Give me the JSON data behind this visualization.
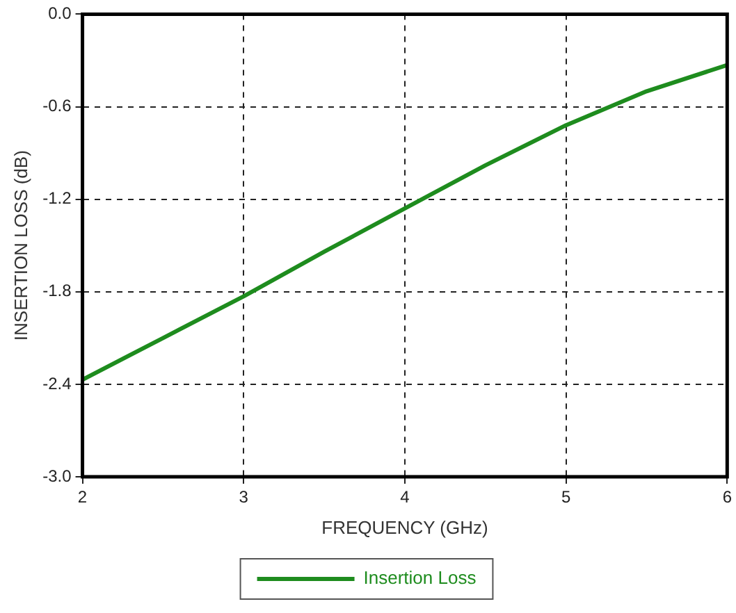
{
  "chart_data": {
    "type": "line",
    "xlabel": "FREQUENCY (GHz)",
    "ylabel": "INSERTION LOSS (dB)",
    "x": [
      2,
      2.5,
      3,
      3.5,
      4,
      4.5,
      5,
      5.5,
      6
    ],
    "series": [
      {
        "name": "Insertion Loss",
        "color": "#1e8c1e",
        "values": [
          -2.37,
          -2.1,
          -1.83,
          -1.54,
          -1.26,
          -0.98,
          -0.72,
          -0.5,
          -0.33
        ]
      }
    ],
    "xlim": [
      2,
      6
    ],
    "xticks": [
      2,
      3,
      4,
      5,
      6
    ],
    "ylim": [
      -3,
      0
    ],
    "yticks": [
      {
        "value": -3,
        "label": "-3.0"
      },
      -2.4,
      -1.8,
      -1.2,
      -0.6,
      {
        "value": 0,
        "label": "0.0"
      }
    ],
    "grid": true,
    "legend": "bottom",
    "marker": "none",
    "line_style": "solid"
  }
}
